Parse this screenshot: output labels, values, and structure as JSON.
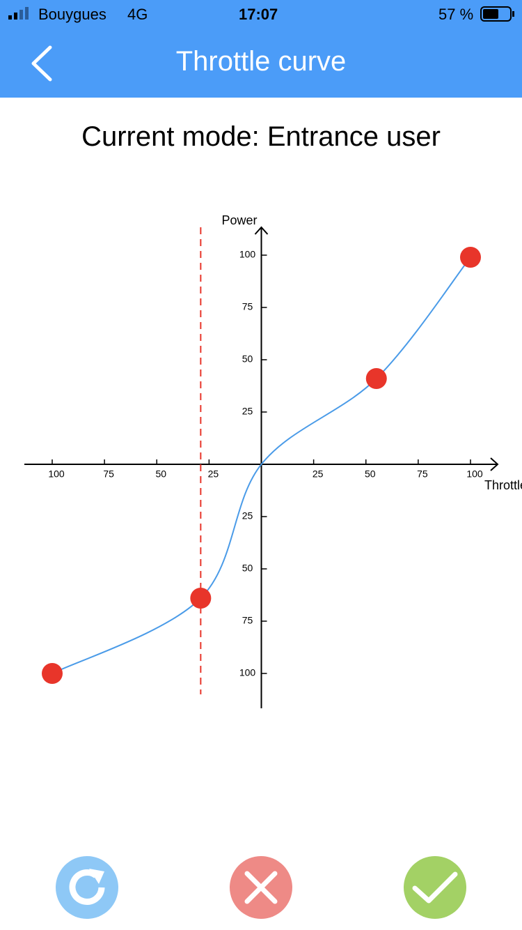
{
  "status_bar": {
    "carrier": "Bouygues",
    "network": "4G",
    "time": "17:07",
    "battery": "57 %"
  },
  "nav": {
    "title": "Throttle curve"
  },
  "mode": "Current mode: Entrance user",
  "chart_data": {
    "type": "line",
    "x_label": "Throttle",
    "y_label": "Power",
    "xlim": [
      -100,
      100
    ],
    "ylim": [
      -100,
      100
    ],
    "xticks": [
      {
        "value": -100,
        "label": "100"
      },
      {
        "value": -75,
        "label": "75"
      },
      {
        "value": -50,
        "label": "50"
      },
      {
        "value": -25,
        "label": "25"
      },
      25,
      50,
      75,
      100
    ],
    "yticks": [
      {
        "value": -100,
        "label": "100"
      },
      {
        "value": -75,
        "label": "75"
      },
      {
        "value": -50,
        "label": "50"
      },
      {
        "value": -25,
        "label": "25"
      },
      25,
      50,
      75,
      100
    ],
    "curve": {
      "color": "#4a9be8",
      "x": [
        -100,
        -29,
        0,
        55,
        100
      ],
      "y": [
        -100,
        -64,
        0,
        41,
        99
      ]
    },
    "points": {
      "color": "#e8352a",
      "x": [
        -100,
        -29,
        55,
        100
      ],
      "y": [
        -100,
        -64,
        41,
        99
      ]
    },
    "guide_x": -29,
    "guide_color": "#e8352a"
  }
}
